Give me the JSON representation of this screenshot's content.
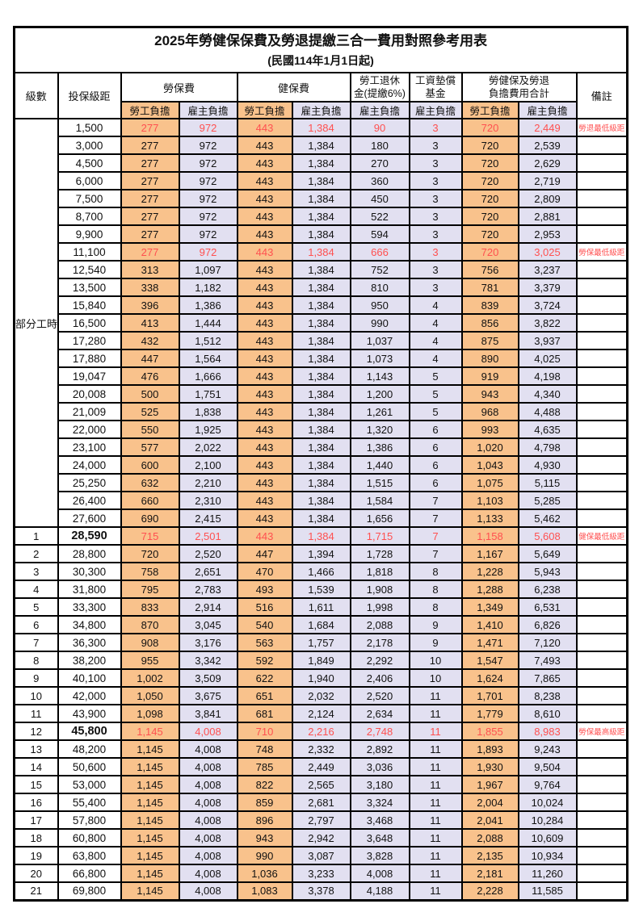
{
  "title": "2025年勞健保保費及勞退提繳三合一費用對照參考用表",
  "subtitle": "(民國114年1月1日起)",
  "colors": {
    "employee_bg": "#F9C28C",
    "employer_bg": "#E2E0F1",
    "highlight_text": "#FF5050",
    "border": "#000000"
  },
  "header": {
    "level": "級數",
    "bracket": "投保級距",
    "labor_ins": "勞保費",
    "health_ins": "健保費",
    "pension_line1": "勞工退休",
    "pension_line2": "金(提繳6%)",
    "wage_fund_line1": "工資墊償",
    "wage_fund_line2": "基金",
    "total_line1": "勞健保及勞退",
    "total_line2": "負擔費用合計",
    "note": "備註",
    "employee": "勞工負擔",
    "employer": "雇主負擔"
  },
  "group": {
    "label": "部分工時",
    "span": 23
  },
  "rows": [
    {
      "level": "",
      "bracket": "1,500",
      "vals": [
        "277",
        "972",
        "443",
        "1,384",
        "90",
        "3",
        "720",
        "2,449"
      ],
      "note": "勞退最低級距",
      "red": true
    },
    {
      "level": "",
      "bracket": "3,000",
      "vals": [
        "277",
        "972",
        "443",
        "1,384",
        "180",
        "3",
        "720",
        "2,539"
      ],
      "note": ""
    },
    {
      "level": "",
      "bracket": "4,500",
      "vals": [
        "277",
        "972",
        "443",
        "1,384",
        "270",
        "3",
        "720",
        "2,629"
      ],
      "note": ""
    },
    {
      "level": "",
      "bracket": "6,000",
      "vals": [
        "277",
        "972",
        "443",
        "1,384",
        "360",
        "3",
        "720",
        "2,719"
      ],
      "note": ""
    },
    {
      "level": "",
      "bracket": "7,500",
      "vals": [
        "277",
        "972",
        "443",
        "1,384",
        "450",
        "3",
        "720",
        "2,809"
      ],
      "note": ""
    },
    {
      "level": "",
      "bracket": "8,700",
      "vals": [
        "277",
        "972",
        "443",
        "1,384",
        "522",
        "3",
        "720",
        "2,881"
      ],
      "note": ""
    },
    {
      "level": "",
      "bracket": "9,900",
      "vals": [
        "277",
        "972",
        "443",
        "1,384",
        "594",
        "3",
        "720",
        "2,953"
      ],
      "note": ""
    },
    {
      "level": "",
      "bracket": "11,100",
      "vals": [
        "277",
        "972",
        "443",
        "1,384",
        "666",
        "3",
        "720",
        "3,025"
      ],
      "note": "勞保最低級距",
      "red": true
    },
    {
      "level": "",
      "bracket": "12,540",
      "vals": [
        "313",
        "1,097",
        "443",
        "1,384",
        "752",
        "3",
        "756",
        "3,237"
      ],
      "note": ""
    },
    {
      "level": "",
      "bracket": "13,500",
      "vals": [
        "338",
        "1,182",
        "443",
        "1,384",
        "810",
        "3",
        "781",
        "3,379"
      ],
      "note": ""
    },
    {
      "level": "",
      "bracket": "15,840",
      "vals": [
        "396",
        "1,386",
        "443",
        "1,384",
        "950",
        "4",
        "839",
        "3,724"
      ],
      "note": ""
    },
    {
      "level": "",
      "bracket": "16,500",
      "vals": [
        "413",
        "1,444",
        "443",
        "1,384",
        "990",
        "4",
        "856",
        "3,822"
      ],
      "note": ""
    },
    {
      "level": "",
      "bracket": "17,280",
      "vals": [
        "432",
        "1,512",
        "443",
        "1,384",
        "1,037",
        "4",
        "875",
        "3,937"
      ],
      "note": ""
    },
    {
      "level": "",
      "bracket": "17,880",
      "vals": [
        "447",
        "1,564",
        "443",
        "1,384",
        "1,073",
        "4",
        "890",
        "4,025"
      ],
      "note": ""
    },
    {
      "level": "",
      "bracket": "19,047",
      "vals": [
        "476",
        "1,666",
        "443",
        "1,384",
        "1,143",
        "5",
        "919",
        "4,198"
      ],
      "note": ""
    },
    {
      "level": "",
      "bracket": "20,008",
      "vals": [
        "500",
        "1,751",
        "443",
        "1,384",
        "1,200",
        "5",
        "943",
        "4,340"
      ],
      "note": ""
    },
    {
      "level": "",
      "bracket": "21,009",
      "vals": [
        "525",
        "1,838",
        "443",
        "1,384",
        "1,261",
        "5",
        "968",
        "4,488"
      ],
      "note": ""
    },
    {
      "level": "",
      "bracket": "22,000",
      "vals": [
        "550",
        "1,925",
        "443",
        "1,384",
        "1,320",
        "6",
        "993",
        "4,635"
      ],
      "note": ""
    },
    {
      "level": "",
      "bracket": "23,100",
      "vals": [
        "577",
        "2,022",
        "443",
        "1,384",
        "1,386",
        "6",
        "1,020",
        "4,798"
      ],
      "note": ""
    },
    {
      "level": "",
      "bracket": "24,000",
      "vals": [
        "600",
        "2,100",
        "443",
        "1,384",
        "1,440",
        "6",
        "1,043",
        "4,930"
      ],
      "note": ""
    },
    {
      "level": "",
      "bracket": "25,250",
      "vals": [
        "632",
        "2,210",
        "443",
        "1,384",
        "1,515",
        "6",
        "1,075",
        "5,115"
      ],
      "note": ""
    },
    {
      "level": "",
      "bracket": "26,400",
      "vals": [
        "660",
        "2,310",
        "443",
        "1,384",
        "1,584",
        "7",
        "1,103",
        "5,285"
      ],
      "note": ""
    },
    {
      "level": "",
      "bracket": "27,600",
      "vals": [
        "690",
        "2,415",
        "443",
        "1,384",
        "1,656",
        "7",
        "1,133",
        "5,462"
      ],
      "note": ""
    },
    {
      "level": "1",
      "bracket": "28,590",
      "vals": [
        "715",
        "2,501",
        "443",
        "1,384",
        "1,715",
        "7",
        "1,158",
        "5,608"
      ],
      "note": "健保最低級距",
      "red": true,
      "bold": true
    },
    {
      "level": "2",
      "bracket": "28,800",
      "vals": [
        "720",
        "2,520",
        "447",
        "1,394",
        "1,728",
        "7",
        "1,167",
        "5,649"
      ],
      "note": ""
    },
    {
      "level": "3",
      "bracket": "30,300",
      "vals": [
        "758",
        "2,651",
        "470",
        "1,466",
        "1,818",
        "8",
        "1,228",
        "5,943"
      ],
      "note": ""
    },
    {
      "level": "4",
      "bracket": "31,800",
      "vals": [
        "795",
        "2,783",
        "493",
        "1,539",
        "1,908",
        "8",
        "1,288",
        "6,238"
      ],
      "note": ""
    },
    {
      "level": "5",
      "bracket": "33,300",
      "vals": [
        "833",
        "2,914",
        "516",
        "1,611",
        "1,998",
        "8",
        "1,349",
        "6,531"
      ],
      "note": ""
    },
    {
      "level": "6",
      "bracket": "34,800",
      "vals": [
        "870",
        "3,045",
        "540",
        "1,684",
        "2,088",
        "9",
        "1,410",
        "6,826"
      ],
      "note": ""
    },
    {
      "level": "7",
      "bracket": "36,300",
      "vals": [
        "908",
        "3,176",
        "563",
        "1,757",
        "2,178",
        "9",
        "1,471",
        "7,120"
      ],
      "note": ""
    },
    {
      "level": "8",
      "bracket": "38,200",
      "vals": [
        "955",
        "3,342",
        "592",
        "1,849",
        "2,292",
        "10",
        "1,547",
        "7,493"
      ],
      "note": ""
    },
    {
      "level": "9",
      "bracket": "40,100",
      "vals": [
        "1,002",
        "3,509",
        "622",
        "1,940",
        "2,406",
        "10",
        "1,624",
        "7,865"
      ],
      "note": ""
    },
    {
      "level": "10",
      "bracket": "42,000",
      "vals": [
        "1,050",
        "3,675",
        "651",
        "2,032",
        "2,520",
        "11",
        "1,701",
        "8,238"
      ],
      "note": ""
    },
    {
      "level": "11",
      "bracket": "43,900",
      "vals": [
        "1,098",
        "3,841",
        "681",
        "2,124",
        "2,634",
        "11",
        "1,779",
        "8,610"
      ],
      "note": ""
    },
    {
      "level": "12",
      "bracket": "45,800",
      "vals": [
        "1,145",
        "4,008",
        "710",
        "2,216",
        "2,748",
        "11",
        "1,855",
        "8,983"
      ],
      "note": "勞保最高級距",
      "red": true,
      "bold": true
    },
    {
      "level": "13",
      "bracket": "48,200",
      "vals": [
        "1,145",
        "4,008",
        "748",
        "2,332",
        "2,892",
        "11",
        "1,893",
        "9,243"
      ],
      "note": ""
    },
    {
      "level": "14",
      "bracket": "50,600",
      "vals": [
        "1,145",
        "4,008",
        "785",
        "2,449",
        "3,036",
        "11",
        "1,930",
        "9,504"
      ],
      "note": ""
    },
    {
      "level": "15",
      "bracket": "53,000",
      "vals": [
        "1,145",
        "4,008",
        "822",
        "2,565",
        "3,180",
        "11",
        "1,967",
        "9,764"
      ],
      "note": ""
    },
    {
      "level": "16",
      "bracket": "55,400",
      "vals": [
        "1,145",
        "4,008",
        "859",
        "2,681",
        "3,324",
        "11",
        "2,004",
        "10,024"
      ],
      "note": ""
    },
    {
      "level": "17",
      "bracket": "57,800",
      "vals": [
        "1,145",
        "4,008",
        "896",
        "2,797",
        "3,468",
        "11",
        "2,041",
        "10,284"
      ],
      "note": ""
    },
    {
      "level": "18",
      "bracket": "60,800",
      "vals": [
        "1,145",
        "4,008",
        "943",
        "2,942",
        "3,648",
        "11",
        "2,088",
        "10,609"
      ],
      "note": ""
    },
    {
      "level": "19",
      "bracket": "63,800",
      "vals": [
        "1,145",
        "4,008",
        "990",
        "3,087",
        "3,828",
        "11",
        "2,135",
        "10,934"
      ],
      "note": ""
    },
    {
      "level": "20",
      "bracket": "66,800",
      "vals": [
        "1,145",
        "4,008",
        "1,036",
        "3,233",
        "4,008",
        "11",
        "2,181",
        "11,260"
      ],
      "note": ""
    },
    {
      "level": "21",
      "bracket": "69,800",
      "vals": [
        "1,145",
        "4,008",
        "1,083",
        "3,378",
        "4,188",
        "11",
        "2,228",
        "11,585"
      ],
      "note": ""
    }
  ],
  "value_col_styles": [
    "orange",
    "lav",
    "orange",
    "lav",
    "lav",
    "lav",
    "orange",
    "lav"
  ]
}
